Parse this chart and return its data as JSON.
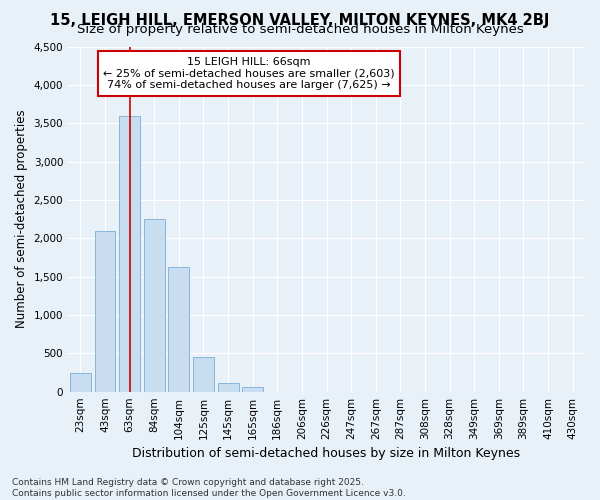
{
  "title_line1": "15, LEIGH HILL, EMERSON VALLEY, MILTON KEYNES, MK4 2BJ",
  "title_line2": "Size of property relative to semi-detached houses in Milton Keynes",
  "xlabel": "Distribution of semi-detached houses by size in Milton Keynes",
  "ylabel": "Number of semi-detached properties",
  "categories": [
    "23sqm",
    "43sqm",
    "63sqm",
    "84sqm",
    "104sqm",
    "125sqm",
    "145sqm",
    "165sqm",
    "186sqm",
    "206sqm",
    "226sqm",
    "247sqm",
    "267sqm",
    "287sqm",
    "308sqm",
    "328sqm",
    "349sqm",
    "369sqm",
    "389sqm",
    "410sqm",
    "430sqm"
  ],
  "values": [
    250,
    2100,
    3600,
    2250,
    1625,
    450,
    110,
    55,
    0,
    0,
    0,
    0,
    0,
    0,
    0,
    0,
    0,
    0,
    0,
    0,
    0
  ],
  "bar_color": "#c8ddf0",
  "bar_edge_color": "#7aafd4",
  "vline_x_index": 2,
  "vline_color": "#cc0000",
  "ylim": [
    0,
    4500
  ],
  "yticks": [
    0,
    500,
    1000,
    1500,
    2000,
    2500,
    3000,
    3500,
    4000,
    4500
  ],
  "annotation_title": "15 LEIGH HILL: 66sqm",
  "annotation_line1": "← 25% of semi-detached houses are smaller (2,603)",
  "annotation_line2": "74% of semi-detached houses are larger (7,625) →",
  "annotation_box_facecolor": "#ffffff",
  "annotation_box_edgecolor": "#cc0000",
  "background_color": "#e8f0f8",
  "plot_bg_color": "#e8f0f8",
  "grid_color": "#ffffff",
  "footer_line1": "Contains HM Land Registry data © Crown copyright and database right 2025.",
  "footer_line2": "Contains public sector information licensed under the Open Government Licence v3.0.",
  "title_fontsize": 10.5,
  "subtitle_fontsize": 9.5,
  "ylabel_fontsize": 8.5,
  "xlabel_fontsize": 9,
  "tick_fontsize": 7.5,
  "annotation_fontsize": 8,
  "footer_fontsize": 6.5
}
